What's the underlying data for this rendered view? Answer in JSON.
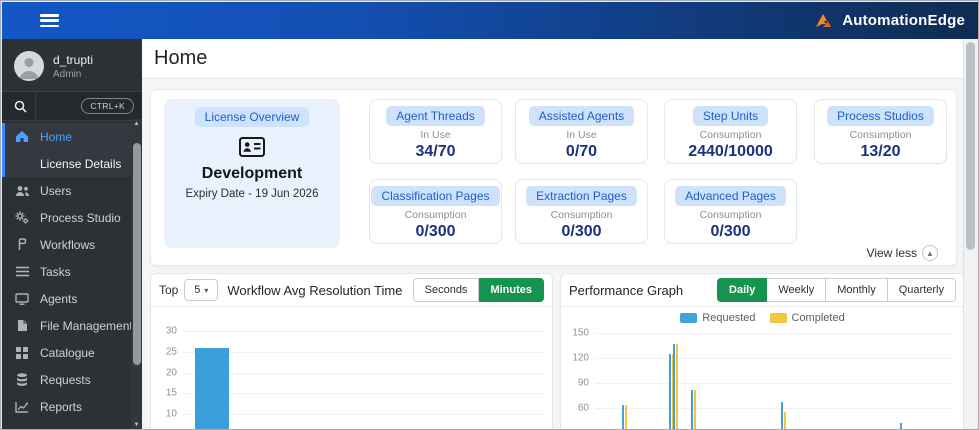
{
  "topbar": {
    "brand": "AutomationEdge"
  },
  "sidebar": {
    "user": {
      "name": "d_trupti",
      "role": "Admin"
    },
    "search": {
      "shortcut": "CTRL+K"
    },
    "items": [
      {
        "label": "Home",
        "icon": "home-icon",
        "active": true
      },
      {
        "label": "License Details",
        "icon": null,
        "active": true,
        "child": true
      },
      {
        "label": "Users",
        "icon": "users-icon"
      },
      {
        "label": "Process Studio",
        "icon": "gears-icon"
      },
      {
        "label": "Workflows",
        "icon": "workflow-icon"
      },
      {
        "label": "Tasks",
        "icon": "tasks-icon"
      },
      {
        "label": "Agents",
        "icon": "monitor-icon"
      },
      {
        "label": "File Management",
        "icon": "file-icon"
      },
      {
        "label": "Catalogue",
        "icon": "grid-icon"
      },
      {
        "label": "Requests",
        "icon": "database-icon"
      },
      {
        "label": "Reports",
        "icon": "chart-line-icon"
      }
    ]
  },
  "header": {
    "title": "Home"
  },
  "license_section": {
    "overview": {
      "badge": "License Overview",
      "name": "Development",
      "expiry": "Expiry Date - 19 Jun 2026"
    },
    "cards": [
      {
        "title": "Agent Threads",
        "subtitle": "In Use",
        "value": "34/70"
      },
      {
        "title": "Assisted Agents",
        "subtitle": "In Use",
        "value": "0/70"
      },
      {
        "title": "Step Units",
        "subtitle": "Consumption",
        "value": "2440/10000"
      },
      {
        "title": "Process Studios",
        "subtitle": "Consumption",
        "value": "13/20"
      },
      {
        "title": "Classification Pages",
        "subtitle": "Consumption",
        "value": "0/300"
      },
      {
        "title": "Extraction Pages",
        "subtitle": "Consumption",
        "value": "0/300"
      },
      {
        "title": "Advanced Pages",
        "subtitle": "Consumption",
        "value": "0/300"
      }
    ],
    "view_less": "View less"
  },
  "workflow_panel": {
    "top_label": "Top",
    "top_value": "5",
    "title": "Workflow Avg Resolution Time",
    "unit_toggle": [
      {
        "label": "Seconds",
        "active": false
      },
      {
        "label": "Minutes",
        "active": true
      }
    ]
  },
  "performance_panel": {
    "title": "Performance Graph",
    "range_buttons": [
      {
        "label": "Daily",
        "active": true
      },
      {
        "label": "Weekly",
        "active": false
      },
      {
        "label": "Monthly",
        "active": false
      },
      {
        "label": "Quarterly",
        "active": false
      }
    ],
    "legend": [
      {
        "label": "Requested",
        "color": "#41A3DC"
      },
      {
        "label": "Completed",
        "color": "#F4C63F"
      }
    ]
  },
  "chart_data": [
    {
      "id": "workflow-avg-resolution-time",
      "type": "bar",
      "title": "Workflow Avg Resolution Time",
      "unit_selected": "Minutes",
      "top_n": 5,
      "grid": true,
      "y_ticks_visible": [
        30,
        25,
        20,
        15,
        10
      ],
      "bar_color": "#3AA0DC",
      "bars": [
        {
          "x_pct": 3.3,
          "value": 26
        }
      ],
      "note": "bottom of chart cropped at screenshot edge; only first bar visible"
    },
    {
      "id": "performance-graph",
      "type": "bar",
      "title": "Performance Graph",
      "period_selected": "Daily",
      "grid": true,
      "y_ticks_visible": [
        150,
        120,
        90,
        60
      ],
      "series": [
        {
          "name": "Requested",
          "color": "#41A3DC"
        },
        {
          "name": "Completed",
          "color": "#F4C63F"
        }
      ],
      "bars": [
        {
          "x_pct": 7.5,
          "requested": 63,
          "completed": 63
        },
        {
          "x_pct": 20.6,
          "requested": 125,
          "completed": 125
        },
        {
          "x_pct": 21.9,
          "requested": 137,
          "completed": 137
        },
        {
          "x_pct": 26.9,
          "requested": 81,
          "completed": 81
        },
        {
          "x_pct": 51.9,
          "requested": 67,
          "completed": 55
        },
        {
          "x_pct": 85.3,
          "requested": 42,
          "completed": null
        }
      ],
      "note": "bottom of chart cropped at screenshot edge"
    }
  ]
}
